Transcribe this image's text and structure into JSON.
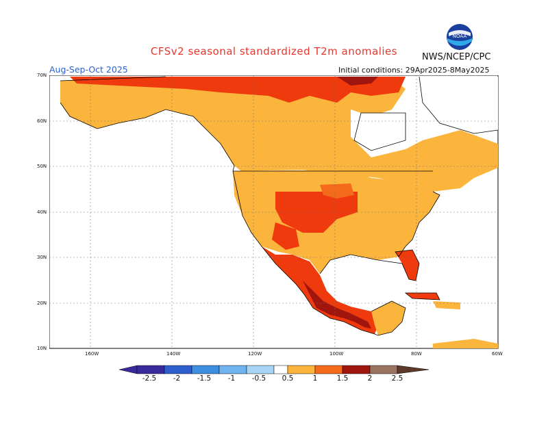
{
  "header": {
    "title": "CFSv2 seasonal standardized T2m anomalies",
    "org": "NWS/NCEP/CPC",
    "season": "Aug-Sep-Oct 2025",
    "init": "Initial conditions: 29Apr2025-8May2025",
    "logo_text": "NOAA"
  },
  "axes": {
    "lat_labels": [
      "70N",
      "60N",
      "50N",
      "40N",
      "30N",
      "20N",
      "10N"
    ],
    "lon_labels": [
      "160W",
      "140W",
      "120W",
      "100W",
      "80W",
      "60W"
    ]
  },
  "colorbar": {
    "labels": [
      "-2.5",
      "-2",
      "-1.5",
      "-1",
      "-0.5",
      "0.5",
      "1",
      "1.5",
      "2",
      "2.5"
    ],
    "colors": [
      "#3a2a9c",
      "#2f5fcf",
      "#3f8ee0",
      "#6fb4ee",
      "#a8d5f6",
      "#ffffff",
      "#fbb43c",
      "#f36a1a",
      "#ee3a0c",
      "#a0150e",
      "#9a7260",
      "#5b3a2a"
    ]
  }
}
